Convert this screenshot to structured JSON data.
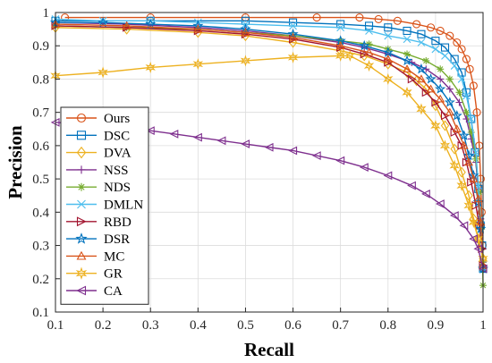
{
  "chart_data": {
    "type": "line",
    "xlabel": "Recall",
    "ylabel": "Precision",
    "xlim": [
      0.1,
      1.0
    ],
    "ylim": [
      0.1,
      1.0
    ],
    "xticks": [
      0.1,
      0.2,
      0.3,
      0.4,
      0.5,
      0.6,
      0.7,
      0.8,
      0.9,
      1
    ],
    "yticks": [
      0.1,
      0.2,
      0.3,
      0.4,
      0.5,
      0.6,
      0.7,
      0.8,
      0.9,
      1
    ],
    "xtick_labels": [
      "0.1",
      "0.2",
      "0.3",
      "0.4",
      "0.5",
      "0.6",
      "0.7",
      "0.8",
      "0.9",
      "1"
    ],
    "ytick_labels": [
      "0.1",
      "0.2",
      "0.3",
      "0.4",
      "0.5",
      "0.6",
      "0.7",
      "0.8",
      "0.9",
      "1"
    ],
    "grid": true,
    "legend_position": "left",
    "series": [
      {
        "name": "Ours",
        "color": "#D95319",
        "marker": "circle",
        "points": [
          [
            0.12,
            0.985
          ],
          [
            0.3,
            0.985
          ],
          [
            0.5,
            0.985
          ],
          [
            0.65,
            0.985
          ],
          [
            0.74,
            0.985
          ],
          [
            0.78,
            0.98
          ],
          [
            0.82,
            0.975
          ],
          [
            0.86,
            0.965
          ],
          [
            0.89,
            0.955
          ],
          [
            0.91,
            0.945
          ],
          [
            0.93,
            0.93
          ],
          [
            0.945,
            0.91
          ],
          [
            0.955,
            0.89
          ],
          [
            0.965,
            0.86
          ],
          [
            0.972,
            0.83
          ],
          [
            0.98,
            0.78
          ],
          [
            0.987,
            0.7
          ],
          [
            0.992,
            0.6
          ],
          [
            0.995,
            0.5
          ],
          [
            0.997,
            0.4
          ],
          [
            0.999,
            0.3
          ],
          [
            1.0,
            0.23
          ]
        ]
      },
      {
        "name": "DSC",
        "color": "#0072BD",
        "marker": "square",
        "points": [
          [
            0.1,
            0.975
          ],
          [
            0.3,
            0.975
          ],
          [
            0.5,
            0.975
          ],
          [
            0.6,
            0.97
          ],
          [
            0.7,
            0.965
          ],
          [
            0.76,
            0.96
          ],
          [
            0.8,
            0.955
          ],
          [
            0.84,
            0.945
          ],
          [
            0.87,
            0.935
          ],
          [
            0.9,
            0.915
          ],
          [
            0.92,
            0.895
          ],
          [
            0.94,
            0.86
          ],
          [
            0.955,
            0.82
          ],
          [
            0.965,
            0.76
          ],
          [
            0.975,
            0.68
          ],
          [
            0.983,
            0.58
          ],
          [
            0.99,
            0.47
          ],
          [
            0.995,
            0.36
          ],
          [
            0.998,
            0.3
          ],
          [
            1.0,
            0.23
          ]
        ]
      },
      {
        "name": "DVA",
        "color": "#EDB120",
        "marker": "diamond",
        "points": [
          [
            0.1,
            0.955
          ],
          [
            0.25,
            0.95
          ],
          [
            0.4,
            0.94
          ],
          [
            0.5,
            0.93
          ],
          [
            0.6,
            0.91
          ],
          [
            0.7,
            0.885
          ],
          [
            0.75,
            0.87
          ],
          [
            0.8,
            0.845
          ],
          [
            0.84,
            0.82
          ],
          [
            0.86,
            0.795
          ],
          [
            0.88,
            0.77
          ],
          [
            0.9,
            0.72
          ],
          [
            0.92,
            0.66
          ],
          [
            0.94,
            0.59
          ],
          [
            0.955,
            0.52
          ],
          [
            0.97,
            0.45
          ],
          [
            0.98,
            0.38
          ],
          [
            0.99,
            0.32
          ],
          [
            1.0,
            0.26
          ]
        ]
      },
      {
        "name": "NSS",
        "color": "#7E2F8E",
        "marker": "plus",
        "points": [
          [
            0.1,
            0.97
          ],
          [
            0.25,
            0.965
          ],
          [
            0.4,
            0.955
          ],
          [
            0.5,
            0.945
          ],
          [
            0.6,
            0.93
          ],
          [
            0.7,
            0.91
          ],
          [
            0.75,
            0.895
          ],
          [
            0.8,
            0.875
          ],
          [
            0.85,
            0.85
          ],
          [
            0.88,
            0.83
          ],
          [
            0.91,
            0.8
          ],
          [
            0.93,
            0.77
          ],
          [
            0.95,
            0.73
          ],
          [
            0.965,
            0.68
          ],
          [
            0.975,
            0.62
          ],
          [
            0.985,
            0.55
          ],
          [
            0.99,
            0.47
          ],
          [
            0.995,
            0.38
          ],
          [
            1.0,
            0.25
          ]
        ]
      },
      {
        "name": "NDS",
        "color": "#77AC30",
        "marker": "asterisk",
        "points": [
          [
            0.1,
            0.96
          ],
          [
            0.25,
            0.955
          ],
          [
            0.4,
            0.95
          ],
          [
            0.5,
            0.94
          ],
          [
            0.6,
            0.93
          ],
          [
            0.7,
            0.915
          ],
          [
            0.76,
            0.905
          ],
          [
            0.8,
            0.89
          ],
          [
            0.84,
            0.875
          ],
          [
            0.88,
            0.855
          ],
          [
            0.91,
            0.83
          ],
          [
            0.93,
            0.8
          ],
          [
            0.95,
            0.76
          ],
          [
            0.965,
            0.7
          ],
          [
            0.975,
            0.64
          ],
          [
            0.985,
            0.56
          ],
          [
            0.992,
            0.46
          ],
          [
            0.996,
            0.35
          ],
          [
            0.999,
            0.25
          ],
          [
            1.0,
            0.18
          ]
        ]
      },
      {
        "name": "DMLN",
        "color": "#4DBEEE",
        "marker": "x",
        "points": [
          [
            0.1,
            0.98
          ],
          [
            0.2,
            0.975
          ],
          [
            0.3,
            0.975
          ],
          [
            0.4,
            0.97
          ],
          [
            0.5,
            0.965
          ],
          [
            0.6,
            0.96
          ],
          [
            0.7,
            0.955
          ],
          [
            0.76,
            0.945
          ],
          [
            0.8,
            0.93
          ],
          [
            0.84,
            0.92
          ],
          [
            0.87,
            0.91
          ],
          [
            0.9,
            0.89
          ],
          [
            0.92,
            0.87
          ],
          [
            0.94,
            0.84
          ],
          [
            0.955,
            0.8
          ],
          [
            0.965,
            0.75
          ],
          [
            0.975,
            0.68
          ],
          [
            0.985,
            0.58
          ],
          [
            0.99,
            0.48
          ],
          [
            0.995,
            0.38
          ],
          [
            1.0,
            0.23
          ]
        ]
      },
      {
        "name": "RBD",
        "color": "#A2142F",
        "marker": "triangle-right",
        "points": [
          [
            0.1,
            0.96
          ],
          [
            0.25,
            0.955
          ],
          [
            0.4,
            0.945
          ],
          [
            0.5,
            0.935
          ],
          [
            0.6,
            0.92
          ],
          [
            0.7,
            0.895
          ],
          [
            0.75,
            0.875
          ],
          [
            0.8,
            0.85
          ],
          [
            0.85,
            0.8
          ],
          [
            0.88,
            0.76
          ],
          [
            0.9,
            0.73
          ],
          [
            0.92,
            0.69
          ],
          [
            0.94,
            0.64
          ],
          [
            0.955,
            0.6
          ],
          [
            0.965,
            0.55
          ],
          [
            0.975,
            0.49
          ],
          [
            0.985,
            0.42
          ],
          [
            0.992,
            0.36
          ],
          [
            0.998,
            0.29
          ],
          [
            1.0,
            0.24
          ]
        ]
      },
      {
        "name": "DSR",
        "color": "#0072BD",
        "marker": "star",
        "points": [
          [
            0.1,
            0.97
          ],
          [
            0.2,
            0.97
          ],
          [
            0.3,
            0.965
          ],
          [
            0.4,
            0.96
          ],
          [
            0.5,
            0.95
          ],
          [
            0.6,
            0.935
          ],
          [
            0.7,
            0.915
          ],
          [
            0.75,
            0.9
          ],
          [
            0.8,
            0.88
          ],
          [
            0.84,
            0.855
          ],
          [
            0.87,
            0.83
          ],
          [
            0.89,
            0.8
          ],
          [
            0.91,
            0.77
          ],
          [
            0.93,
            0.73
          ],
          [
            0.945,
            0.69
          ],
          [
            0.96,
            0.63
          ],
          [
            0.97,
            0.57
          ],
          [
            0.98,
            0.51
          ],
          [
            0.99,
            0.43
          ],
          [
            0.995,
            0.35
          ],
          [
            1.0,
            0.23
          ]
        ]
      },
      {
        "name": "MC",
        "color": "#D95319",
        "marker": "triangle-up",
        "points": [
          [
            0.1,
            0.965
          ],
          [
            0.25,
            0.96
          ],
          [
            0.4,
            0.95
          ],
          [
            0.5,
            0.94
          ],
          [
            0.6,
            0.925
          ],
          [
            0.7,
            0.9
          ],
          [
            0.76,
            0.88
          ],
          [
            0.8,
            0.86
          ],
          [
            0.84,
            0.83
          ],
          [
            0.87,
            0.8
          ],
          [
            0.89,
            0.77
          ],
          [
            0.91,
            0.74
          ],
          [
            0.93,
            0.7
          ],
          [
            0.945,
            0.65
          ],
          [
            0.96,
            0.6
          ],
          [
            0.97,
            0.55
          ],
          [
            0.98,
            0.5
          ],
          [
            0.99,
            0.44
          ],
          [
            0.995,
            0.37
          ],
          [
            1.0,
            0.24
          ]
        ]
      },
      {
        "name": "GR",
        "color": "#EDB120",
        "marker": "hexagram",
        "points": [
          [
            0.1,
            0.81
          ],
          [
            0.2,
            0.82
          ],
          [
            0.3,
            0.835
          ],
          [
            0.4,
            0.845
          ],
          [
            0.5,
            0.855
          ],
          [
            0.6,
            0.865
          ],
          [
            0.7,
            0.87
          ],
          [
            0.72,
            0.87
          ],
          [
            0.76,
            0.84
          ],
          [
            0.8,
            0.8
          ],
          [
            0.84,
            0.76
          ],
          [
            0.87,
            0.71
          ],
          [
            0.9,
            0.66
          ],
          [
            0.92,
            0.6
          ],
          [
            0.94,
            0.54
          ],
          [
            0.955,
            0.48
          ],
          [
            0.97,
            0.42
          ],
          [
            0.98,
            0.37
          ],
          [
            0.99,
            0.32
          ],
          [
            1.0,
            0.26
          ]
        ]
      },
      {
        "name": "CA",
        "color": "#7E2F8E",
        "marker": "triangle-left",
        "points": [
          [
            0.1,
            0.67
          ],
          [
            0.2,
            0.66
          ],
          [
            0.3,
            0.645
          ],
          [
            0.35,
            0.635
          ],
          [
            0.4,
            0.625
          ],
          [
            0.45,
            0.615
          ],
          [
            0.5,
            0.605
          ],
          [
            0.55,
            0.595
          ],
          [
            0.6,
            0.585
          ],
          [
            0.65,
            0.57
          ],
          [
            0.7,
            0.555
          ],
          [
            0.75,
            0.535
          ],
          [
            0.8,
            0.51
          ],
          [
            0.85,
            0.48
          ],
          [
            0.88,
            0.455
          ],
          [
            0.91,
            0.425
          ],
          [
            0.94,
            0.39
          ],
          [
            0.96,
            0.36
          ],
          [
            0.98,
            0.32
          ],
          [
            0.99,
            0.29
          ],
          [
            1.0,
            0.23
          ]
        ]
      }
    ]
  }
}
